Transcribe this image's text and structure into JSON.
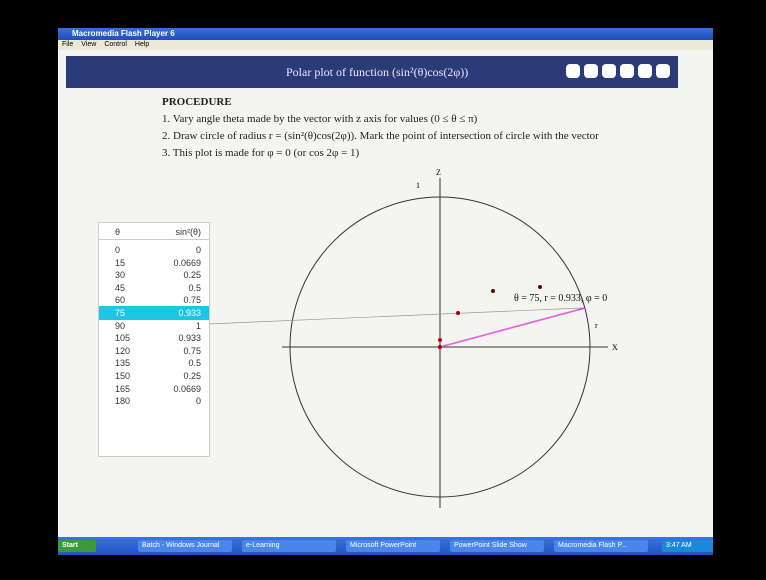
{
  "window": {
    "title": "Macromedia Flash Player 6",
    "menu": [
      "File",
      "View",
      "Control",
      "Help"
    ]
  },
  "banner": {
    "title": "Polar plot of function (sin²(θ)cos(2φ))"
  },
  "procedure": {
    "heading": "PROCEDURE",
    "steps": [
      "1. Vary angle theta made by the vector with z axis for values (0 ≤ θ ≤ π)",
      "2. Draw circle of radius  r = (sin²(θ)cos(2φ)).  Mark the point of intersection of circle with the vector",
      "3. This plot is made for φ = 0 (or cos 2φ = 1)"
    ]
  },
  "table": {
    "header": [
      "θ",
      "sin²(θ)"
    ],
    "rows": [
      [
        "0",
        "0"
      ],
      [
        "15",
        "0.0669"
      ],
      [
        "30",
        "0.25"
      ],
      [
        "45",
        "0.5"
      ],
      [
        "60",
        "0.75"
      ],
      [
        "75",
        "0.933"
      ],
      [
        "90",
        "1"
      ],
      [
        "105",
        "0.933"
      ],
      [
        "120",
        "0.75"
      ],
      [
        "135",
        "0.5"
      ],
      [
        "150",
        "0.25"
      ],
      [
        "165",
        "0.0669"
      ],
      [
        "180",
        "0"
      ]
    ],
    "selected_row": 5
  },
  "plot": {
    "z_label": "Z",
    "x_label": "X",
    "unit_label": "1",
    "r_label": "r",
    "readout": "θ = 75, r = 0.933, φ = 0"
  },
  "taskbar": {
    "start": "Start",
    "items": [
      "Batch - Windows Journal",
      "e-Learning",
      "Microsoft PowerPoint",
      "PowerPoint Slide Show",
      "Macromedia Flash P..."
    ],
    "clock": "3:47 AM"
  }
}
